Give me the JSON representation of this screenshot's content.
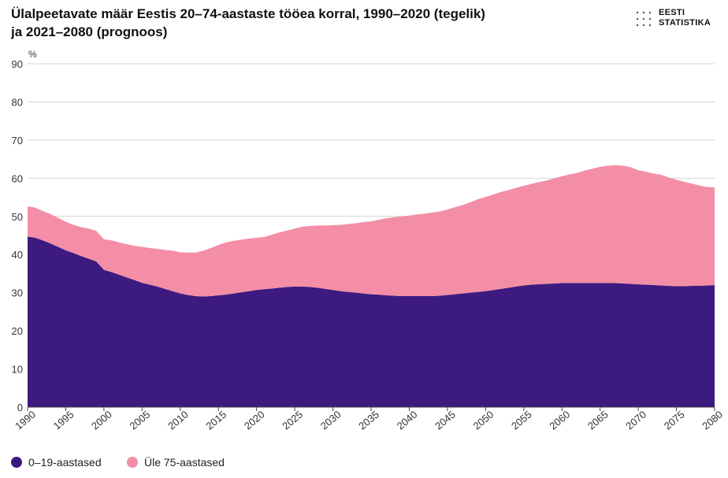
{
  "chart_data": {
    "type": "area",
    "stacked": true,
    "title_line1": "Ülalpeetavate määr Eestis 20–74-aastaste tööea korral, 1990–2020 (tegelik)",
    "title_line2": "ja 2021–2080 (prognoos)",
    "ylabel": "%",
    "ylim": [
      0,
      90
    ],
    "yticks": [
      0,
      10,
      20,
      30,
      40,
      50,
      60,
      70,
      80,
      90
    ],
    "xlim": [
      1990,
      2080
    ],
    "xticks": [
      1990,
      1995,
      2000,
      2005,
      2010,
      2015,
      2020,
      2025,
      2030,
      2035,
      2040,
      2045,
      2050,
      2055,
      2060,
      2065,
      2070,
      2075,
      2080
    ],
    "grid": true,
    "legend_position": "bottom-left",
    "x": [
      1990,
      1991,
      1992,
      1993,
      1994,
      1995,
      1996,
      1997,
      1998,
      1999,
      2000,
      2001,
      2002,
      2003,
      2004,
      2005,
      2006,
      2007,
      2008,
      2009,
      2010,
      2011,
      2012,
      2013,
      2014,
      2015,
      2016,
      2017,
      2018,
      2019,
      2020,
      2021,
      2022,
      2023,
      2024,
      2025,
      2026,
      2027,
      2028,
      2029,
      2030,
      2031,
      2032,
      2033,
      2034,
      2035,
      2036,
      2037,
      2038,
      2039,
      2040,
      2041,
      2042,
      2043,
      2044,
      2045,
      2046,
      2047,
      2048,
      2049,
      2050,
      2051,
      2052,
      2053,
      2054,
      2055,
      2056,
      2057,
      2058,
      2059,
      2060,
      2061,
      2062,
      2063,
      2064,
      2065,
      2066,
      2067,
      2068,
      2069,
      2070,
      2071,
      2072,
      2073,
      2074,
      2075,
      2076,
      2077,
      2078,
      2079,
      2080
    ],
    "series": [
      {
        "name": "0–19-aastased",
        "color": "#3d1a80",
        "values": [
          44.7,
          44.4,
          43.7,
          42.9,
          42.0,
          41.1,
          40.4,
          39.6,
          38.9,
          38.2,
          36.0,
          35.4,
          34.7,
          34.0,
          33.3,
          32.6,
          32.1,
          31.6,
          31.0,
          30.4,
          29.8,
          29.4,
          29.1,
          29.0,
          29.1,
          29.3,
          29.5,
          29.8,
          30.1,
          30.4,
          30.7,
          30.9,
          31.1,
          31.3,
          31.5,
          31.6,
          31.6,
          31.5,
          31.3,
          31.0,
          30.7,
          30.4,
          30.2,
          30.0,
          29.8,
          29.6,
          29.5,
          29.3,
          29.2,
          29.1,
          29.1,
          29.1,
          29.1,
          29.1,
          29.2,
          29.4,
          29.6,
          29.8,
          30.0,
          30.2,
          30.4,
          30.7,
          31.0,
          31.3,
          31.6,
          31.9,
          32.1,
          32.2,
          32.3,
          32.4,
          32.5,
          32.5,
          32.5,
          32.5,
          32.5,
          32.5,
          32.5,
          32.5,
          32.4,
          32.3,
          32.2,
          32.1,
          32.0,
          31.9,
          31.8,
          31.7,
          31.7,
          31.8,
          31.8,
          31.9,
          32.0
        ]
      },
      {
        "name": "Üle 75-aastased",
        "color": "#f38ea6",
        "values": [
          7.9,
          7.9,
          7.7,
          7.7,
          7.6,
          7.5,
          7.4,
          7.6,
          7.9,
          8.0,
          8.0,
          8.3,
          8.5,
          8.7,
          9.0,
          9.4,
          9.6,
          9.9,
          10.2,
          10.6,
          10.8,
          11.1,
          11.4,
          12.0,
          12.6,
          13.2,
          13.7,
          13.8,
          13.8,
          13.8,
          13.7,
          13.7,
          14.1,
          14.5,
          14.8,
          15.2,
          15.7,
          16.0,
          16.3,
          16.6,
          17.0,
          17.4,
          17.8,
          18.2,
          18.7,
          19.1,
          19.6,
          20.2,
          20.6,
          20.9,
          21.1,
          21.4,
          21.6,
          21.9,
          22.1,
          22.4,
          22.8,
          23.2,
          23.7,
          24.3,
          24.7,
          25.0,
          25.4,
          25.6,
          25.9,
          26.1,
          26.4,
          26.8,
          27.1,
          27.6,
          28.0,
          28.5,
          28.9,
          29.5,
          30.0,
          30.5,
          30.8,
          30.9,
          30.9,
          30.6,
          29.9,
          29.6,
          29.2,
          29.0,
          28.4,
          27.9,
          27.4,
          26.8,
          26.3,
          25.8,
          25.6
        ]
      }
    ]
  },
  "brand": {
    "line1": "EESTI",
    "line2": "STATISTIKA"
  },
  "legend": [
    {
      "label": "0–19-aastased",
      "color": "#3d1a80"
    },
    {
      "label": "Üle 75-aastased",
      "color": "#f38ea6"
    }
  ]
}
